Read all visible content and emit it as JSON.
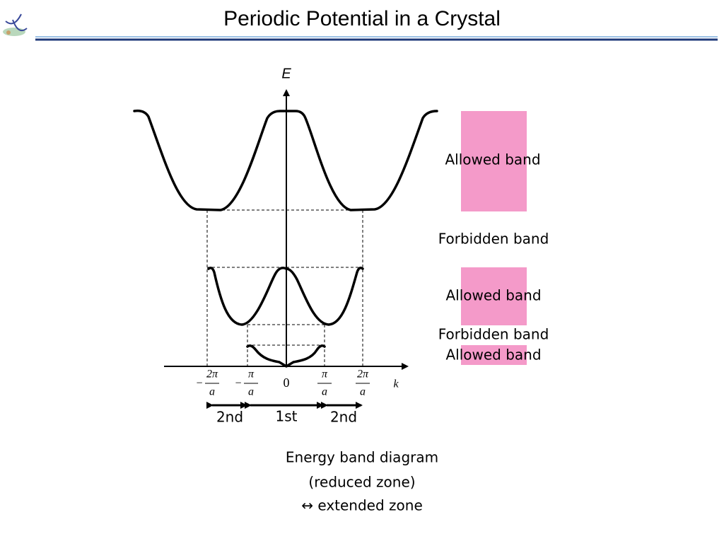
{
  "header": {
    "title": "Periodic Potential in a Crystal"
  },
  "diagram": {
    "axes": {
      "y_label": "E",
      "x_label": "k"
    },
    "ticks": [
      {
        "sign": "−",
        "numerator": "2π",
        "denominator": "a"
      },
      {
        "sign": "−",
        "numerator": "π",
        "denominator": "a"
      },
      {
        "label": "0"
      },
      {
        "numerator": "π",
        "denominator": "a"
      },
      {
        "numerator": "2π",
        "denominator": "a"
      }
    ],
    "zones": [
      "2nd",
      "1st",
      "2nd"
    ],
    "bands": [
      "Allowed band",
      "Forbidden band",
      "Allowed band",
      "Forbidden band",
      "Allowed band"
    ],
    "caption": [
      "Energy band diagram",
      "(reduced zone)",
      "↔ extended zone"
    ]
  }
}
